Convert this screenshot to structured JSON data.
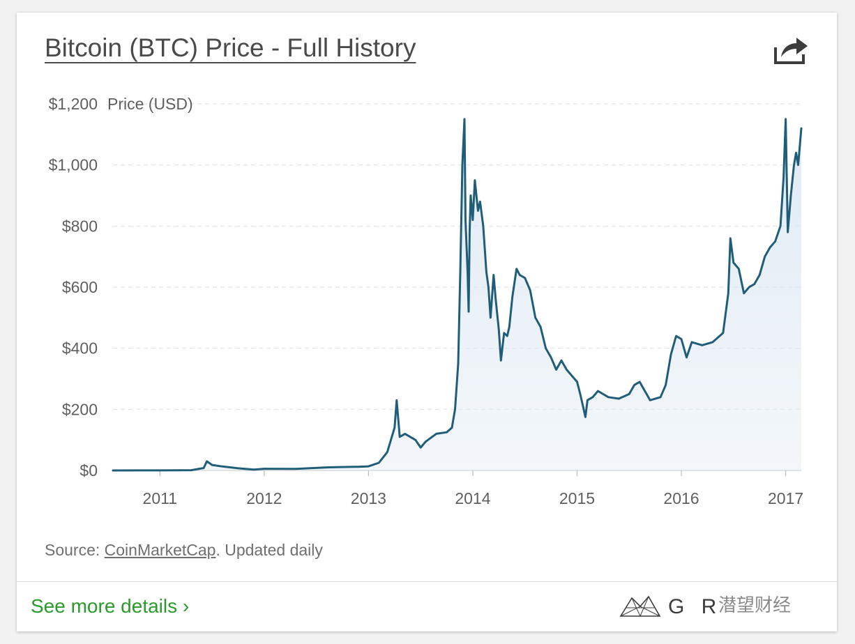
{
  "card": {
    "title": "Bitcoin (BTC) Price - Full History",
    "share_icon": "share-arrow-icon",
    "source_prefix": "Source: ",
    "source_link": "CoinMarketCap",
    "source_suffix": ". Updated daily",
    "more_link": "See more details ›",
    "brand_name": "G R",
    "brand_icon": "graph-mesh-icon",
    "watermark": "潜望财经"
  },
  "colors": {
    "line": "#1f5d78",
    "area": "#dde8f2",
    "grid": "#e3e3e3",
    "axis_text": "#5f5f5f",
    "link_green": "#2a9a2a"
  },
  "chart_data": {
    "type": "area",
    "title": "Bitcoin (BTC) Price - Full History",
    "ylabel": "Price (USD)",
    "xlabel": "",
    "ylim": [
      0,
      1200
    ],
    "xlim": [
      2010.55,
      2017.15
    ],
    "y_ticks": [
      0,
      200,
      400,
      600,
      800,
      1000,
      1200
    ],
    "y_tick_labels": [
      "$0",
      "$200",
      "$400",
      "$600",
      "$800",
      "$1,000",
      "$1,200"
    ],
    "x_ticks": [
      2011,
      2012,
      2013,
      2014,
      2015,
      2016,
      2017
    ],
    "x_tick_labels": [
      "2011",
      "2012",
      "2013",
      "2014",
      "2015",
      "2016",
      "2017"
    ],
    "grid": true,
    "series": [
      {
        "name": "Price (USD)",
        "x": [
          2010.55,
          2010.8,
          2011.0,
          2011.3,
          2011.42,
          2011.45,
          2011.5,
          2011.6,
          2011.75,
          2011.9,
          2012.0,
          2012.3,
          2012.6,
          2012.7,
          2012.9,
          2013.0,
          2013.1,
          2013.18,
          2013.25,
          2013.27,
          2013.3,
          2013.35,
          2013.45,
          2013.5,
          2013.55,
          2013.65,
          2013.75,
          2013.8,
          2013.83,
          2013.86,
          2013.88,
          2013.9,
          2013.92,
          2013.93,
          2013.95,
          2013.96,
          2013.97,
          2013.98,
          2014.0,
          2014.02,
          2014.05,
          2014.07,
          2014.1,
          2014.13,
          2014.15,
          2014.17,
          2014.2,
          2014.22,
          2014.25,
          2014.27,
          2014.3,
          2014.33,
          2014.35,
          2014.38,
          2014.42,
          2014.45,
          2014.5,
          2014.55,
          2014.6,
          2014.65,
          2014.7,
          2014.75,
          2014.8,
          2014.85,
          2014.9,
          2014.95,
          2015.0,
          2015.03,
          2015.05,
          2015.08,
          2015.1,
          2015.15,
          2015.2,
          2015.3,
          2015.4,
          2015.5,
          2015.55,
          2015.6,
          2015.65,
          2015.7,
          2015.8,
          2015.85,
          2015.9,
          2015.95,
          2016.0,
          2016.05,
          2016.1,
          2016.2,
          2016.3,
          2016.4,
          2016.45,
          2016.47,
          2016.5,
          2016.55,
          2016.6,
          2016.65,
          2016.7,
          2016.75,
          2016.8,
          2016.85,
          2016.9,
          2016.95,
          2016.98,
          2017.0,
          2017.02,
          2017.05,
          2017.08,
          2017.1,
          2017.12,
          2017.15
        ],
        "values": [
          0.06,
          0.2,
          0.3,
          1.0,
          8.0,
          30.0,
          18.0,
          13.0,
          7.0,
          3.0,
          5.5,
          5.0,
          10.0,
          11.0,
          12.0,
          13.5,
          25.0,
          60.0,
          140.0,
          230.0,
          110.0,
          120.0,
          100.0,
          75.0,
          95.0,
          120.0,
          125.0,
          140.0,
          200.0,
          350.0,
          650.0,
          1000.0,
          1150.0,
          820.0,
          650.0,
          520.0,
          780.0,
          900.0,
          820.0,
          950.0,
          850.0,
          880.0,
          800.0,
          650.0,
          600.0,
          500.0,
          640.0,
          560.0,
          460.0,
          360.0,
          450.0,
          440.0,
          470.0,
          570.0,
          660.0,
          640.0,
          630.0,
          590.0,
          500.0,
          470.0,
          400.0,
          370.0,
          330.0,
          360.0,
          330.0,
          310.0,
          290.0,
          250.0,
          220.0,
          175.0,
          230.0,
          240.0,
          260.0,
          240.0,
          235.0,
          250.0,
          280.0,
          290.0,
          260.0,
          230.0,
          240.0,
          280.0,
          380.0,
          440.0,
          430.0,
          370.0,
          420.0,
          410.0,
          420.0,
          450.0,
          580.0,
          760.0,
          680.0,
          660.0,
          580.0,
          600.0,
          610.0,
          640.0,
          700.0,
          730.0,
          750.0,
          800.0,
          960.0,
          1150.0,
          780.0,
          900.0,
          1000.0,
          1040.0,
          1000.0,
          1120.0
        ]
      }
    ]
  }
}
